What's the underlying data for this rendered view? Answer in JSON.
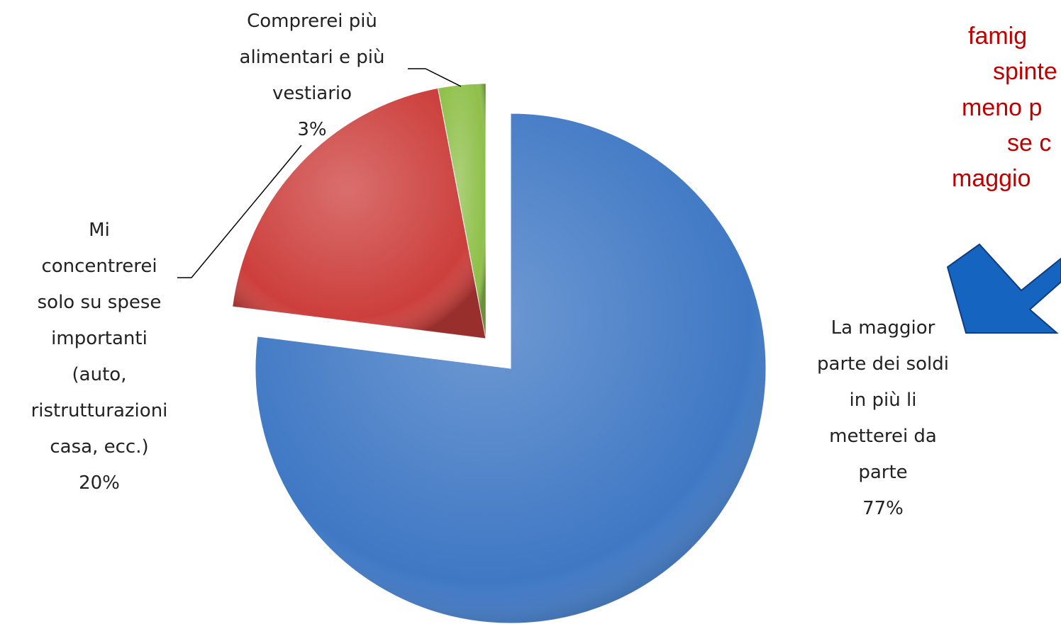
{
  "chart_data": {
    "type": "pie",
    "categories": [
      "La maggior\nparte dei soldi\nin più li\nmetterei da\nparte",
      "Mi\nconcentrerei\nsolo su spese\nimportanti\n(auto,\nristrutturazioni\ncasa, ecc.)",
      "Comprerei più\nalimentari e più\nvestiario"
    ],
    "values": [
      77,
      20,
      3
    ],
    "value_labels": [
      "77%",
      "20%",
      "3%"
    ],
    "colors": [
      "#3f78c4",
      "#cc3f3c",
      "#8fc04a"
    ],
    "exploded": [
      false,
      true,
      true
    ]
  },
  "annotation": {
    "lines": [
      "famig",
      "spinte",
      "meno p",
      "se c",
      "maggio"
    ]
  }
}
